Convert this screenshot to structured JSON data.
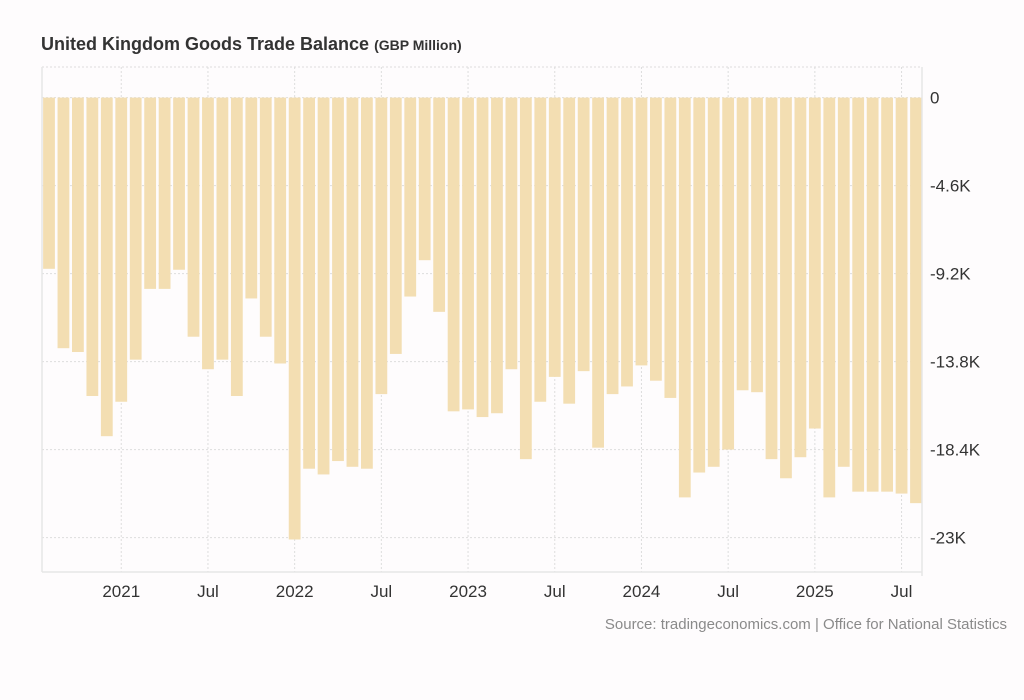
{
  "chart_data": {
    "type": "bar",
    "title": "United Kingdom Goods Trade Balance",
    "unit_label": "(GBP Million)",
    "xlabel": "",
    "ylabel": "",
    "ylim": [
      -24800,
      1600
    ],
    "grid": true,
    "bar_color": "#f3deb2",
    "y_ticks": [
      {
        "value": 0,
        "label": "0"
      },
      {
        "value": -4600,
        "label": "-4.6K"
      },
      {
        "value": -9200,
        "label": "-9.2K"
      },
      {
        "value": -13800,
        "label": "-13.8K"
      },
      {
        "value": -18400,
        "label": "-18.4K"
      },
      {
        "value": -23000,
        "label": "-23K"
      }
    ],
    "x_ticks": [
      {
        "index": 5,
        "label": "2021"
      },
      {
        "index": 11,
        "label": "Jul"
      },
      {
        "index": 17,
        "label": "2022"
      },
      {
        "index": 23,
        "label": "Jul"
      },
      {
        "index": 29,
        "label": "2023"
      },
      {
        "index": 35,
        "label": "Jul"
      },
      {
        "index": 41,
        "label": "2024"
      },
      {
        "index": 47,
        "label": "Jul"
      },
      {
        "index": 53,
        "label": "2025"
      },
      {
        "index": 59,
        "label": "Jul"
      }
    ],
    "categories": [
      "2020-08",
      "2020-09",
      "2020-10",
      "2020-11",
      "2020-12",
      "2021-01",
      "2021-02",
      "2021-03",
      "2021-04",
      "2021-05",
      "2021-06",
      "2021-07",
      "2021-08",
      "2021-09",
      "2021-10",
      "2021-11",
      "2021-12",
      "2022-01",
      "2022-02",
      "2022-03",
      "2022-04",
      "2022-05",
      "2022-06",
      "2022-07",
      "2022-08",
      "2022-09",
      "2022-10",
      "2022-11",
      "2022-12",
      "2023-01",
      "2023-02",
      "2023-03",
      "2023-04",
      "2023-05",
      "2023-06",
      "2023-07",
      "2023-08",
      "2023-09",
      "2023-10",
      "2023-11",
      "2023-12",
      "2024-01",
      "2024-02",
      "2024-03",
      "2024-04",
      "2024-05",
      "2024-06",
      "2024-07",
      "2024-08",
      "2024-09",
      "2024-10",
      "2024-11",
      "2024-12",
      "2025-01",
      "2025-02",
      "2025-03",
      "2025-04",
      "2025-05",
      "2025-06",
      "2025-07",
      "2025-08"
    ],
    "values": [
      -8950,
      -13100,
      -13300,
      -15600,
      -17700,
      -15900,
      -13700,
      -10000,
      -10000,
      -9000,
      -12500,
      -14200,
      -13700,
      -15600,
      -10500,
      -12500,
      -13900,
      -23100,
      -19400,
      -19700,
      -19000,
      -19300,
      -19400,
      -15500,
      -13400,
      -10400,
      -8500,
      -11200,
      -16400,
      -16300,
      -16700,
      -16500,
      -14200,
      -18900,
      -15900,
      -14600,
      -16000,
      -14300,
      -18300,
      -15500,
      -15100,
      -14000,
      -14800,
      -15700,
      -20900,
      -19600,
      -19300,
      -18400,
      -15300,
      -15400,
      -18900,
      -19900,
      -18800,
      -17300,
      -20900,
      -19300,
      -20600,
      -20600,
      -20600,
      -20700,
      -21200
    ]
  },
  "source": "Source: tradingeconomics.com | Office for National Statistics"
}
